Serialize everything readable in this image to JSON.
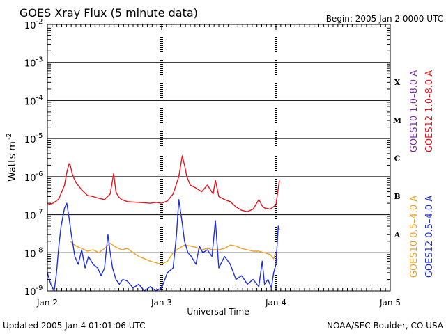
{
  "chart_data": {
    "type": "line",
    "title": "GOES Xray Flux (5 minute data)",
    "begin_text": "Begin:  2005 Jan 2 0000 UTC",
    "xlabel": "Universal Time",
    "ylabel": "Watts m",
    "ylabel_sup": "-2",
    "yscale": "log",
    "ylim_exponents": [
      -9,
      -2
    ],
    "y_ticks": [
      {
        "base": "10",
        "exp": "-2"
      },
      {
        "base": "10",
        "exp": "-3"
      },
      {
        "base": "10",
        "exp": "-4"
      },
      {
        "base": "10",
        "exp": "-5"
      },
      {
        "base": "10",
        "exp": "-6"
      },
      {
        "base": "10",
        "exp": "-7"
      },
      {
        "base": "10",
        "exp": "-8"
      },
      {
        "base": "10",
        "exp": "-9"
      }
    ],
    "x_range_days": [
      0,
      3
    ],
    "x_ticks": [
      "Jan 2",
      "Jan 3",
      "Jan 4",
      "Jan 5"
    ],
    "flare_classes": [
      "X",
      "M",
      "C",
      "B",
      "A"
    ],
    "legend_right_top": [
      {
        "label": "GOES10 1.0–8.0 A",
        "color": "#7a2fa8"
      },
      {
        "label": "GOES12 1.0–8.0 A",
        "color": "#e8141c"
      }
    ],
    "legend_right_bottom": [
      {
        "label": "GOES10 0.5–4.0 A",
        "color": "#f0a020"
      },
      {
        "label": "GOES12 0.5–4.0 A",
        "color": "#1f30e0"
      }
    ],
    "series": [
      {
        "name": "GOES12 1.0-8.0 A",
        "color": "#e8141c",
        "x": [
          0,
          0.05,
          0.1,
          0.15,
          0.17,
          0.19,
          0.2,
          0.22,
          0.25,
          0.3,
          0.35,
          0.4,
          0.45,
          0.5,
          0.55,
          0.58,
          0.6,
          0.62,
          0.65,
          0.7,
          0.8,
          0.9,
          0.95,
          1.0,
          1.05,
          1.1,
          1.15,
          1.18,
          1.2,
          1.22,
          1.25,
          1.3,
          1.35,
          1.4,
          1.45,
          1.47,
          1.5,
          1.55,
          1.6,
          1.65,
          1.7,
          1.75,
          1.8,
          1.85,
          1.88,
          1.9,
          1.95,
          2.0,
          2.02,
          2.03
        ],
        "y": [
          1.8e-07,
          2e-07,
          2.6e-07,
          6e-07,
          1.3e-06,
          2.2e-06,
          2e-06,
          1.1e-06,
          7e-07,
          4.5e-07,
          3.2e-07,
          3e-07,
          2.7e-07,
          2.5e-07,
          3.5e-07,
          1.2e-06,
          4e-07,
          3e-07,
          2.5e-07,
          2.2e-07,
          2.1e-07,
          2e-07,
          2.1e-07,
          2e-07,
          2.3e-07,
          3.5e-07,
          1e-06,
          3.5e-06,
          2e-06,
          1e-06,
          6e-07,
          5e-07,
          4e-07,
          6e-07,
          3.5e-07,
          8e-07,
          3e-07,
          2.5e-07,
          2.2e-07,
          1.6e-07,
          1.3e-07,
          1.2e-07,
          1.4e-07,
          2.5e-07,
          1.7e-07,
          1.5e-07,
          1.4e-07,
          1.8e-07,
          5e-07,
          8e-07
        ]
      },
      {
        "name": "GOES10 0.5-4.0 A",
        "color": "#f0a020",
        "x": [
          0.2,
          0.25,
          0.3,
          0.35,
          0.4,
          0.45,
          0.5,
          0.55,
          0.6,
          0.65,
          0.7,
          0.75,
          0.8,
          0.85,
          0.9,
          0.95,
          1.0,
          1.05,
          1.1,
          1.15,
          1.2,
          1.25,
          1.3,
          1.35,
          1.4,
          1.45,
          1.5,
          1.55,
          1.6,
          1.65,
          1.7,
          1.75,
          1.8,
          1.85,
          1.9,
          1.95,
          1.98,
          2.0
        ],
        "y": [
          2e-08,
          1.5e-08,
          1.3e-08,
          1.1e-08,
          1.2e-08,
          1e-08,
          1.3e-08,
          1.8e-08,
          1.4e-08,
          1.2e-08,
          1.3e-08,
          1e-08,
          8e-09,
          7e-09,
          6e-09,
          5.5e-09,
          5e-09,
          6e-09,
          1e-08,
          1.3e-08,
          1.6e-08,
          1.5e-08,
          1.4e-08,
          1.2e-08,
          1.3e-08,
          1.2e-08,
          1.2e-08,
          1.3e-08,
          1.6e-08,
          1.5e-08,
          1.3e-08,
          1.2e-08,
          1.1e-08,
          1.1e-08,
          1e-08,
          9e-09,
          7e-09,
          1e-08
        ]
      },
      {
        "name": "GOES12 0.5-4.0 A",
        "color": "#1f30e0",
        "x": [
          0,
          0.03,
          0.06,
          0.08,
          0.1,
          0.12,
          0.15,
          0.17,
          0.19,
          0.21,
          0.24,
          0.27,
          0.3,
          0.33,
          0.36,
          0.4,
          0.44,
          0.47,
          0.5,
          0.53,
          0.55,
          0.57,
          0.6,
          0.63,
          0.66,
          0.7,
          0.75,
          0.8,
          0.85,
          0.9,
          0.95,
          1.0,
          1.05,
          1.1,
          1.13,
          1.15,
          1.18,
          1.2,
          1.23,
          1.26,
          1.3,
          1.33,
          1.36,
          1.4,
          1.44,
          1.47,
          1.5,
          1.55,
          1.6,
          1.65,
          1.7,
          1.75,
          1.8,
          1.85,
          1.88,
          1.9,
          1.93,
          1.96,
          1.98,
          2.0,
          2.02,
          2.03
        ],
        "y": [
          3e-09,
          1.5e-09,
          1e-09,
          3e-09,
          1.5e-08,
          5e-08,
          1.5e-07,
          2e-07,
          8e-08,
          3e-08,
          8e-09,
          5e-09,
          1.2e-08,
          4e-09,
          8e-09,
          5e-09,
          4e-09,
          2.5e-09,
          4e-09,
          3e-08,
          1e-08,
          4e-09,
          2e-09,
          1.5e-09,
          2e-09,
          1.8e-09,
          1.2e-09,
          1.5e-09,
          1e-09,
          1.3e-09,
          1e-09,
          1.2e-09,
          3e-09,
          4e-09,
          3e-08,
          2.5e-07,
          6e-08,
          2e-08,
          1e-08,
          8e-09,
          5e-09,
          1.5e-08,
          1e-08,
          1.2e-08,
          8e-09,
          7e-08,
          4e-09,
          8e-09,
          5e-09,
          2e-09,
          2.5e-09,
          1.5e-09,
          2e-09,
          1.3e-09,
          6e-09,
          1.5e-09,
          2e-09,
          1.2e-09,
          3e-09,
          5e-09,
          5e-08,
          4e-08
        ]
      }
    ]
  },
  "footer": {
    "updated": "Updated 2005 Jan  4 01:01:06 UTC",
    "credit": "NOAA/SEC Boulder, CO USA"
  }
}
